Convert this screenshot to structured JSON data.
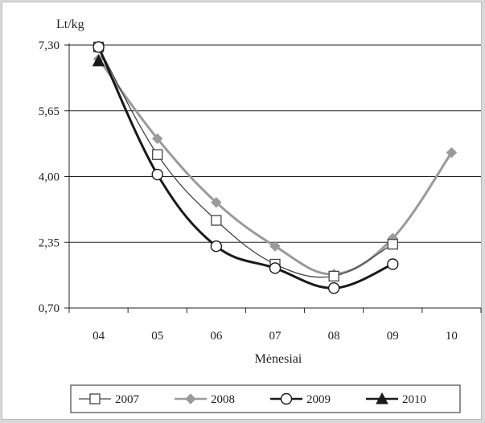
{
  "chart_data": {
    "type": "line",
    "title": "",
    "ylabel": "Lt/kg",
    "xlabel": "Mėnesiai",
    "categories": [
      "04",
      "05",
      "06",
      "07",
      "08",
      "09",
      "10"
    ],
    "y_ticks": [
      "7,30",
      "5,65",
      "4,00",
      "2,35",
      "0,70"
    ],
    "ylim": [
      0.7,
      7.3
    ],
    "grid": "horizontal",
    "legend_position": "bottom",
    "series": [
      {
        "name": "2007",
        "values": [
          7.25,
          4.55,
          2.9,
          1.8,
          1.5,
          2.3,
          null
        ],
        "color": "#444444",
        "marker": "square-open",
        "width": 1.3
      },
      {
        "name": "2008",
        "values": [
          6.95,
          4.95,
          3.35,
          2.25,
          1.55,
          2.45,
          4.6
        ],
        "color": "#9a9a9a",
        "marker": "diamond",
        "width": 3
      },
      {
        "name": "2009",
        "values": [
          7.25,
          4.05,
          2.25,
          1.7,
          1.2,
          1.8,
          null
        ],
        "color": "#1a1a1a",
        "marker": "circle-open",
        "width": 3
      },
      {
        "name": "2010",
        "values": [
          6.9,
          null,
          null,
          null,
          null,
          null,
          null
        ],
        "color": "#1a1a1a",
        "marker": "triangle",
        "width": 3
      }
    ]
  }
}
